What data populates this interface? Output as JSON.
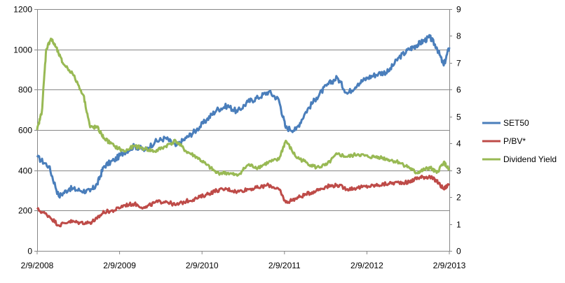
{
  "chart_data": {
    "type": "line",
    "title": "",
    "xlabel": "",
    "ylabel": "",
    "y2label": "",
    "x_ticks": [
      "2/9/2008",
      "2/9/2009",
      "2/9/2010",
      "2/9/2011",
      "2/9/2012",
      "2/9/2013"
    ],
    "x_range": [
      "2008-02-09",
      "2013-02-09"
    ],
    "ylim": [
      0,
      1200
    ],
    "y_ticks": [
      0,
      200,
      400,
      600,
      800,
      1000,
      1200
    ],
    "y2lim": [
      0,
      9
    ],
    "y2_ticks": [
      0,
      1,
      2,
      3,
      4,
      5,
      6,
      7,
      8,
      9
    ],
    "grid": true,
    "legend_position": "right",
    "series": [
      {
        "name": "SET50",
        "axis": "left",
        "color": "#4a7ebb",
        "x": [
          "2008-02-09",
          "2008-04-01",
          "2008-05-15",
          "2008-07-01",
          "2008-08-15",
          "2008-10-01",
          "2008-11-01",
          "2008-12-01",
          "2009-01-15",
          "2009-03-01",
          "2009-04-15",
          "2009-06-01",
          "2009-07-15",
          "2009-09-01",
          "2009-10-15",
          "2009-12-01",
          "2010-01-15",
          "2010-03-01",
          "2010-04-15",
          "2010-06-01",
          "2010-07-15",
          "2010-09-01",
          "2010-10-15",
          "2010-12-01",
          "2011-01-15",
          "2011-02-15",
          "2011-04-01",
          "2011-05-15",
          "2011-07-01",
          "2011-08-15",
          "2011-10-01",
          "2011-11-15",
          "2012-01-01",
          "2012-02-15",
          "2012-04-01",
          "2012-05-15",
          "2012-07-01",
          "2012-08-15",
          "2012-09-15",
          "2012-10-15",
          "2012-11-15",
          "2012-12-15",
          "2013-01-15",
          "2013-02-09"
        ],
        "values": [
          465,
          420,
          270,
          310,
          300,
          295,
          330,
          420,
          450,
          490,
          520,
          500,
          540,
          560,
          520,
          560,
          600,
          650,
          700,
          720,
          690,
          740,
          760,
          790,
          750,
          610,
          600,
          690,
          760,
          820,
          860,
          780,
          830,
          860,
          880,
          890,
          960,
          1000,
          1020,
          1040,
          1060,
          1010,
          920,
          1010
        ]
      },
      {
        "name": "P/BV*",
        "axis": "right",
        "color": "#be4b48",
        "x": [
          "2008-02-09",
          "2008-04-01",
          "2008-05-15",
          "2008-07-01",
          "2008-08-15",
          "2008-10-01",
          "2008-11-01",
          "2008-12-01",
          "2009-01-15",
          "2009-03-01",
          "2009-04-15",
          "2009-06-01",
          "2009-07-15",
          "2009-09-01",
          "2009-10-15",
          "2009-12-01",
          "2010-01-15",
          "2010-03-01",
          "2010-04-15",
          "2010-06-01",
          "2010-07-15",
          "2010-09-01",
          "2010-10-15",
          "2010-12-01",
          "2011-01-15",
          "2011-02-15",
          "2011-04-01",
          "2011-05-15",
          "2011-07-01",
          "2011-08-15",
          "2011-10-01",
          "2011-11-15",
          "2012-01-01",
          "2012-02-15",
          "2012-04-01",
          "2012-05-15",
          "2012-07-01",
          "2012-08-15",
          "2012-09-15",
          "2012-10-15",
          "2012-11-15",
          "2012-12-15",
          "2013-01-15",
          "2013-02-09"
        ],
        "values": [
          1.55,
          1.3,
          0.95,
          1.1,
          1.05,
          1.05,
          1.2,
          1.45,
          1.5,
          1.7,
          1.75,
          1.6,
          1.8,
          1.85,
          1.7,
          1.85,
          1.95,
          2.1,
          2.25,
          2.3,
          2.2,
          2.3,
          2.35,
          2.45,
          2.3,
          1.8,
          1.95,
          2.1,
          2.25,
          2.4,
          2.45,
          2.3,
          2.35,
          2.4,
          2.45,
          2.5,
          2.55,
          2.55,
          2.7,
          2.75,
          2.75,
          2.6,
          2.3,
          2.5
        ]
      },
      {
        "name": "Dividend Yield",
        "axis": "right",
        "color": "#98b954",
        "x": [
          "2008-02-09",
          "2008-03-01",
          "2008-03-20",
          "2008-04-10",
          "2008-05-01",
          "2008-06-01",
          "2008-07-15",
          "2008-09-01",
          "2008-10-01",
          "2008-11-01",
          "2008-12-01",
          "2009-01-15",
          "2009-03-01",
          "2009-04-15",
          "2009-06-01",
          "2009-07-15",
          "2009-09-01",
          "2009-10-15",
          "2009-12-01",
          "2010-01-15",
          "2010-03-01",
          "2010-04-15",
          "2010-06-01",
          "2010-07-15",
          "2010-09-01",
          "2010-10-15",
          "2010-12-01",
          "2011-01-15",
          "2011-02-15",
          "2011-04-01",
          "2011-05-15",
          "2011-07-01",
          "2011-08-15",
          "2011-10-01",
          "2011-11-15",
          "2012-01-01",
          "2012-02-15",
          "2012-04-01",
          "2012-05-15",
          "2012-07-01",
          "2012-08-15",
          "2012-09-15",
          "2012-10-15",
          "2012-11-15",
          "2012-12-15",
          "2013-01-15",
          "2013-02-09"
        ],
        "values": [
          4.5,
          5.2,
          7.5,
          7.9,
          7.6,
          7.0,
          6.6,
          5.8,
          4.6,
          4.6,
          4.2,
          3.9,
          3.7,
          3.9,
          3.8,
          3.7,
          3.9,
          4.1,
          3.7,
          3.5,
          3.2,
          2.9,
          2.9,
          2.8,
          3.2,
          3.1,
          3.3,
          3.4,
          4.1,
          3.5,
          3.3,
          3.1,
          3.2,
          3.6,
          3.5,
          3.6,
          3.5,
          3.5,
          3.4,
          3.3,
          3.1,
          2.9,
          3.0,
          3.1,
          2.9,
          3.3,
          3.0
        ]
      }
    ]
  }
}
